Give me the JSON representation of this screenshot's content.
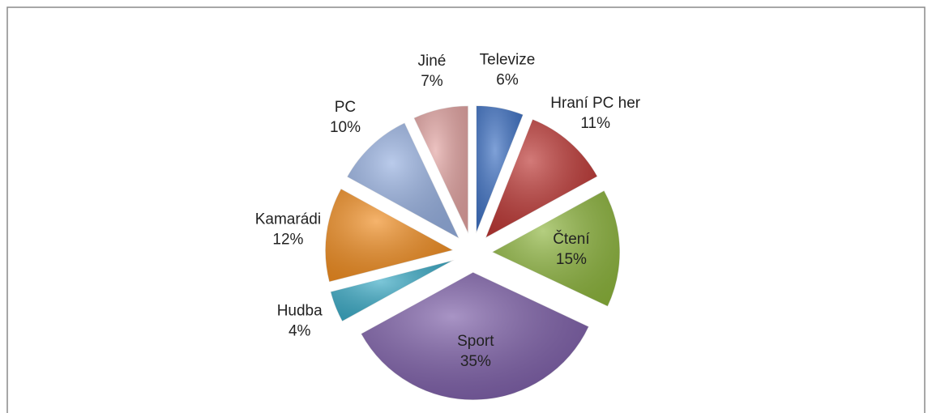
{
  "chart_data": {
    "type": "pie",
    "categories": [
      "Televize",
      "Hraní PC her",
      "Čtení",
      "Sport",
      "Hudba",
      "Kamarádi",
      "PC",
      "Jiné"
    ],
    "values": [
      6,
      11,
      15,
      35,
      4,
      12,
      10,
      7
    ],
    "value_labels": [
      "6%",
      "11%",
      "15%",
      "35%",
      "4%",
      "12%",
      "10%",
      "7%"
    ],
    "colors": [
      "#3b6fc3",
      "#bb3330",
      "#8cb43b",
      "#7a5ba6",
      "#36a8c4",
      "#f08b1d",
      "#95afe0",
      "#e2a2a0"
    ]
  }
}
